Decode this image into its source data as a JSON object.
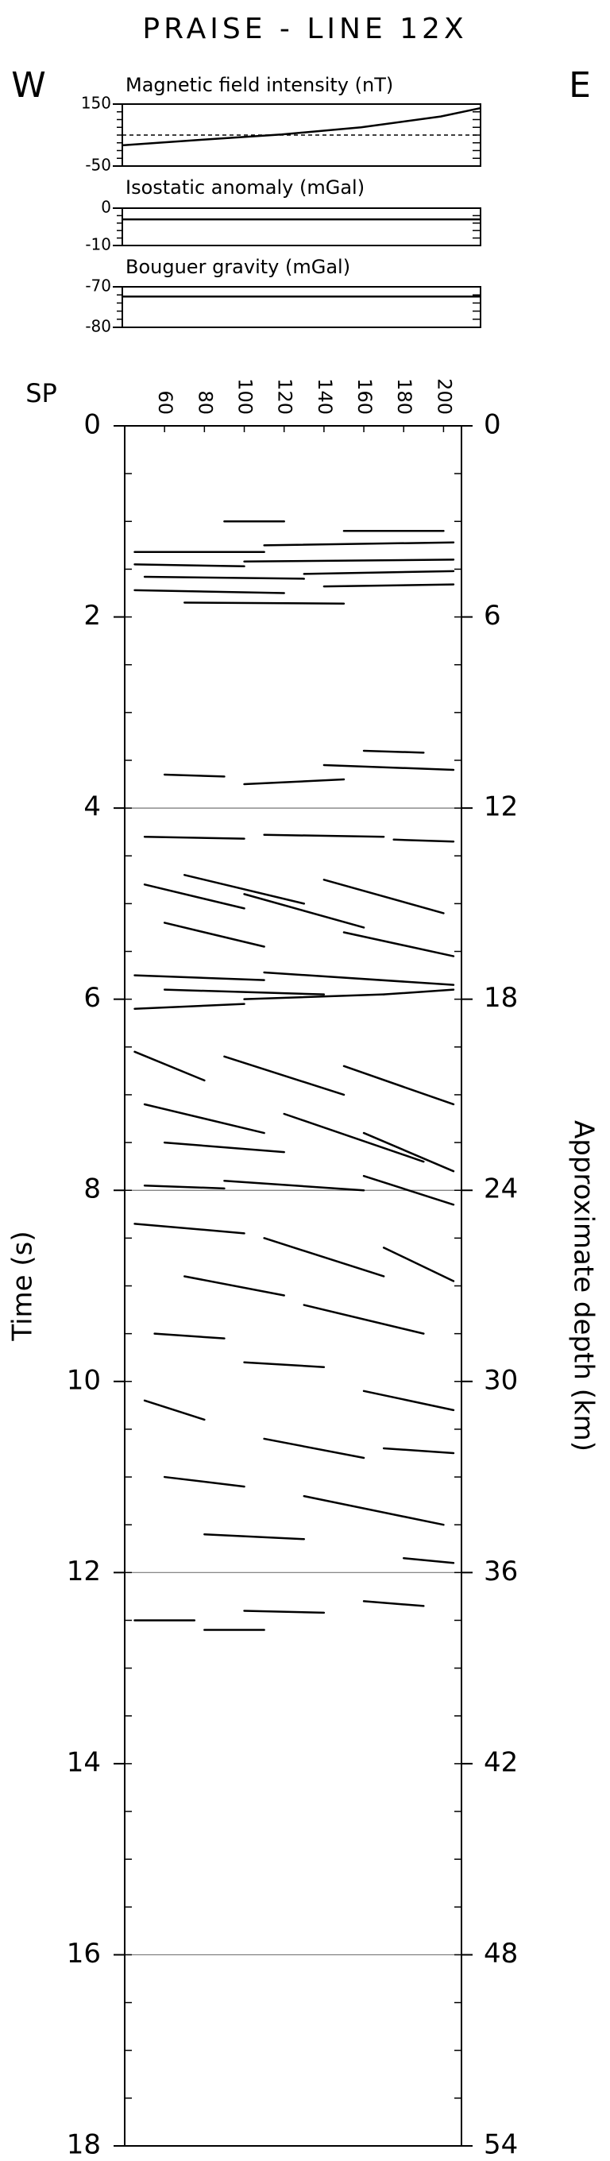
{
  "title": "PRAISE - LINE 12X",
  "left_label": "W",
  "right_label": "E",
  "chart_data": [
    {
      "type": "line",
      "title": "Magnetic field intensity (nT)",
      "x": [
        40,
        80,
        120,
        160,
        200,
        220
      ],
      "series": [
        {
          "color": "#000000",
          "values": [
            17,
            35,
            52,
            75,
            110,
            137
          ]
        }
      ],
      "reference": 50,
      "xlim": [
        40,
        220
      ],
      "ylim": [
        -50,
        150
      ],
      "yticks": [
        -50,
        150
      ],
      "minor_step": 25
    },
    {
      "type": "line",
      "title": "Isostatic anomaly (mGal)",
      "x": [
        40,
        220
      ],
      "series": [
        {
          "color": "#000000",
          "values": [
            -3,
            -3
          ]
        }
      ],
      "xlim": [
        40,
        220
      ],
      "ylim": [
        -10,
        0
      ],
      "yticks": [
        -10,
        0
      ],
      "minor_step": 2
    },
    {
      "type": "line",
      "title": "Bouguer gravity (mGal)",
      "x": [
        40,
        220
      ],
      "series": [
        {
          "color": "#000000",
          "values": [
            -72.4,
            -72.4
          ]
        }
      ],
      "xlim": [
        40,
        220
      ],
      "ylim": [
        -80,
        -70
      ],
      "yticks": [
        -80,
        -70
      ],
      "minor_step": 2
    },
    {
      "type": "seismic",
      "xlabel": "SP",
      "ylabel": "Time (s)",
      "y2label": "Approximate depth (km)",
      "xlim": [
        40,
        209
      ],
      "xticks": [
        60,
        80,
        100,
        120,
        140,
        160,
        180,
        200
      ],
      "ylim": [
        0,
        18
      ],
      "invert_y": true,
      "yticks": [
        0,
        2,
        4,
        6,
        8,
        10,
        12,
        14,
        16,
        18
      ],
      "y2lim": [
        0,
        54
      ],
      "y2ticks": [
        0,
        6,
        12,
        18,
        24,
        30,
        36,
        42,
        48,
        54
      ],
      "grid_lines": [
        4,
        8,
        12,
        16
      ],
      "minor_step": 0.5,
      "color": "#000000",
      "segments": [
        {
          "x": [
            45,
            110
          ],
          "y": [
            1.32,
            1.32
          ]
        },
        {
          "x": [
            110,
            205
          ],
          "y": [
            1.25,
            1.22
          ]
        },
        {
          "x": [
            45,
            100
          ],
          "y": [
            1.45,
            1.47
          ]
        },
        {
          "x": [
            100,
            205
          ],
          "y": [
            1.42,
            1.4
          ]
        },
        {
          "x": [
            50,
            130
          ],
          "y": [
            1.58,
            1.6
          ]
        },
        {
          "x": [
            130,
            205
          ],
          "y": [
            1.55,
            1.52
          ]
        },
        {
          "x": [
            45,
            120
          ],
          "y": [
            1.72,
            1.75
          ]
        },
        {
          "x": [
            140,
            205
          ],
          "y": [
            1.68,
            1.66
          ]
        },
        {
          "x": [
            70,
            150
          ],
          "y": [
            1.85,
            1.86
          ]
        },
        {
          "x": [
            150,
            200
          ],
          "y": [
            1.1,
            1.1
          ]
        },
        {
          "x": [
            90,
            120
          ],
          "y": [
            1.0,
            1.0
          ]
        },
        {
          "x": [
            140,
            205
          ],
          "y": [
            3.55,
            3.6
          ]
        },
        {
          "x": [
            100,
            150
          ],
          "y": [
            3.75,
            3.7
          ]
        },
        {
          "x": [
            60,
            90
          ],
          "y": [
            3.65,
            3.67
          ]
        },
        {
          "x": [
            160,
            190
          ],
          "y": [
            3.4,
            3.42
          ]
        },
        {
          "x": [
            50,
            100
          ],
          "y": [
            4.3,
            4.32
          ]
        },
        {
          "x": [
            110,
            170
          ],
          "y": [
            4.28,
            4.3
          ]
        },
        {
          "x": [
            175,
            205
          ],
          "y": [
            4.33,
            4.35
          ]
        },
        {
          "x": [
            50,
            100
          ],
          "y": [
            4.8,
            5.05
          ]
        },
        {
          "x": [
            70,
            130
          ],
          "y": [
            4.7,
            5.0
          ]
        },
        {
          "x": [
            100,
            160
          ],
          "y": [
            4.9,
            5.25
          ]
        },
        {
          "x": [
            140,
            200
          ],
          "y": [
            4.75,
            5.1
          ]
        },
        {
          "x": [
            60,
            110
          ],
          "y": [
            5.2,
            5.45
          ]
        },
        {
          "x": [
            150,
            205
          ],
          "y": [
            5.3,
            5.55
          ]
        },
        {
          "x": [
            45,
            110
          ],
          "y": [
            5.75,
            5.8
          ]
        },
        {
          "x": [
            110,
            205
          ],
          "y": [
            5.72,
            5.85
          ]
        },
        {
          "x": [
            45,
            100
          ],
          "y": [
            6.1,
            6.05
          ]
        },
        {
          "x": [
            100,
            170
          ],
          "y": [
            6.0,
            5.95
          ]
        },
        {
          "x": [
            170,
            205
          ],
          "y": [
            5.95,
            5.9
          ]
        },
        {
          "x": [
            60,
            140
          ],
          "y": [
            5.9,
            5.95
          ]
        },
        {
          "x": [
            45,
            80
          ],
          "y": [
            6.55,
            6.85
          ]
        },
        {
          "x": [
            90,
            150
          ],
          "y": [
            6.6,
            7.0
          ]
        },
        {
          "x": [
            150,
            205
          ],
          "y": [
            6.7,
            7.1
          ]
        },
        {
          "x": [
            50,
            110
          ],
          "y": [
            7.1,
            7.4
          ]
        },
        {
          "x": [
            120,
            190
          ],
          "y": [
            7.2,
            7.7
          ]
        },
        {
          "x": [
            160,
            205
          ],
          "y": [
            7.4,
            7.8
          ]
        },
        {
          "x": [
            60,
            120
          ],
          "y": [
            7.5,
            7.6
          ]
        },
        {
          "x": [
            90,
            160
          ],
          "y": [
            7.9,
            8.0
          ]
        },
        {
          "x": [
            160,
            205
          ],
          "y": [
            7.85,
            8.15
          ]
        },
        {
          "x": [
            50,
            90
          ],
          "y": [
            7.95,
            7.98
          ]
        },
        {
          "x": [
            45,
            100
          ],
          "y": [
            8.35,
            8.45
          ]
        },
        {
          "x": [
            110,
            170
          ],
          "y": [
            8.5,
            8.9
          ]
        },
        {
          "x": [
            170,
            205
          ],
          "y": [
            8.6,
            8.95
          ]
        },
        {
          "x": [
            70,
            120
          ],
          "y": [
            8.9,
            9.1
          ]
        },
        {
          "x": [
            130,
            190
          ],
          "y": [
            9.2,
            9.5
          ]
        },
        {
          "x": [
            55,
            90
          ],
          "y": [
            9.5,
            9.55
          ]
        },
        {
          "x": [
            100,
            140
          ],
          "y": [
            9.8,
            9.85
          ]
        },
        {
          "x": [
            160,
            205
          ],
          "y": [
            10.1,
            10.3
          ]
        },
        {
          "x": [
            50,
            80
          ],
          "y": [
            10.2,
            10.4
          ]
        },
        {
          "x": [
            110,
            160
          ],
          "y": [
            10.6,
            10.8
          ]
        },
        {
          "x": [
            170,
            205
          ],
          "y": [
            10.7,
            10.75
          ]
        },
        {
          "x": [
            60,
            100
          ],
          "y": [
            11.0,
            11.1
          ]
        },
        {
          "x": [
            130,
            200
          ],
          "y": [
            11.2,
            11.5
          ]
        },
        {
          "x": [
            80,
            130
          ],
          "y": [
            11.6,
            11.65
          ]
        },
        {
          "x": [
            180,
            205
          ],
          "y": [
            11.85,
            11.9
          ]
        },
        {
          "x": [
            45,
            75
          ],
          "y": [
            12.5,
            12.5
          ]
        },
        {
          "x": [
            100,
            140
          ],
          "y": [
            12.4,
            12.42
          ]
        },
        {
          "x": [
            160,
            190
          ],
          "y": [
            12.3,
            12.35
          ]
        },
        {
          "x": [
            80,
            110
          ],
          "y": [
            12.6,
            12.6
          ]
        }
      ]
    }
  ]
}
